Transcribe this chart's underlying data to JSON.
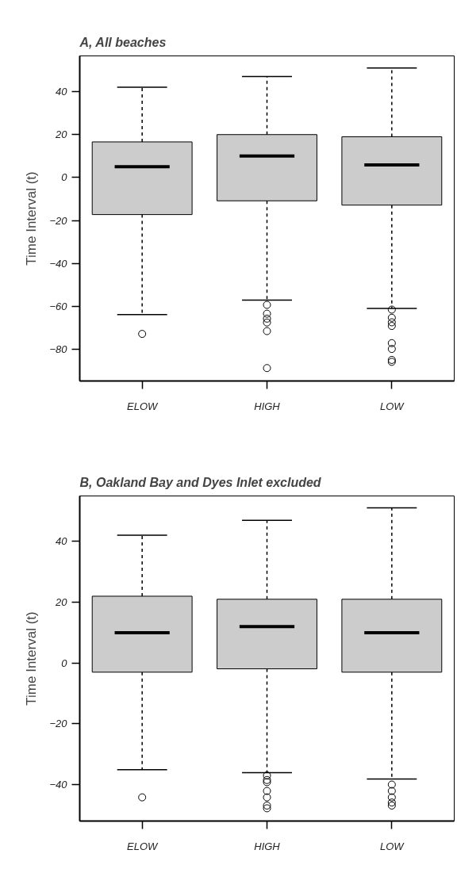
{
  "chart_data": [
    {
      "type": "box",
      "title": "A, All beaches",
      "ylabel": "Time Interval (t)",
      "categories": [
        "ELOW",
        "HIGH",
        "LOW"
      ],
      "color": "#cccccc",
      "ylim": [
        -94.6,
        56.6
      ],
      "yticks": [
        -80,
        -60,
        -40,
        -20,
        0,
        20,
        40
      ],
      "grid": false,
      "marker": "circle",
      "boxes": [
        {
          "low": -63.7,
          "q1": -17.2,
          "median": 5.1,
          "q3": 16.6,
          "high": 42,
          "outliers": [
            -72.7
          ]
        },
        {
          "low": -57,
          "q1": -10.8,
          "median": 10,
          "q3": 20,
          "high": 47,
          "outliers": [
            -59.2,
            -63.3,
            -65.6,
            -67.4,
            -71.4,
            -88.6
          ]
        },
        {
          "low": -60.9,
          "q1": -12.8,
          "median": 5.9,
          "q3": 19,
          "high": 51,
          "outliers": [
            -61.4,
            -65.2,
            -67.3,
            -69,
            -77,
            -79.7,
            -84.8,
            -85.7
          ]
        }
      ]
    },
    {
      "type": "box",
      "title": "B, Oakland Bay and Dyes Inlet excluded",
      "ylabel": "Time Interval (t)",
      "categories": [
        "ELOW",
        "HIGH",
        "LOW"
      ],
      "color": "#cccccc",
      "ylim": [
        -52,
        55
      ],
      "yticks": [
        -40,
        -20,
        0,
        20,
        40
      ],
      "grid": false,
      "marker": "circle",
      "boxes": [
        {
          "low": -35.1,
          "q1": -3,
          "median": 10,
          "q3": 22,
          "high": 42.1,
          "outliers": [
            -44.2
          ]
        },
        {
          "low": -36.1,
          "q1": -1.9,
          "median": 12,
          "q3": 21,
          "high": 47,
          "outliers": [
            -37,
            -38.5,
            -39.2,
            -42.1,
            -44.2,
            -46.9,
            -47.8
          ]
        },
        {
          "low": -38.2,
          "q1": -3,
          "median": 10,
          "q3": 21,
          "high": 51.1,
          "outliers": [
            -40,
            -42.1,
            -44.2,
            -45.9,
            -46.9
          ]
        }
      ]
    }
  ]
}
